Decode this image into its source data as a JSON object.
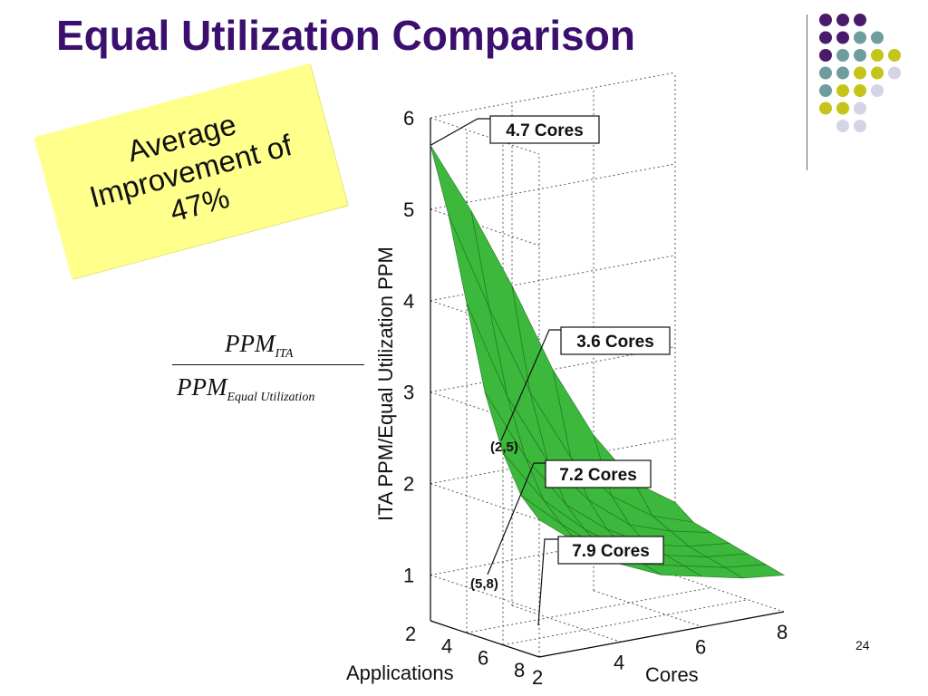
{
  "slide": {
    "title": "Equal Utilization Comparison",
    "callout": "Average\nImprovement of\n47%",
    "formula": {
      "numerator": "PPM",
      "numerator_sub": "ITA",
      "denominator": "PPM",
      "denominator_sub": "Equal  Utilization"
    },
    "slide_number": "24"
  },
  "colors": {
    "title": "#3b0f6e",
    "callout_bg": "#ffff8c",
    "surface": "#3cb83c",
    "surface_edge": "#1e6e1e",
    "dot_purple": "#4b1b6b",
    "dot_teal": "#6f9c9c",
    "dot_yellow": "#c4c41a",
    "dot_lavender": "#d4d4e6"
  },
  "decor_dots": [
    [
      "purple",
      "purple",
      "purple",
      null,
      null
    ],
    [
      "purple",
      "purple",
      "teal",
      "teal",
      null
    ],
    [
      "purple",
      "teal",
      "teal",
      "yellow",
      "yellow"
    ],
    [
      "teal",
      "teal",
      "yellow",
      "yellow",
      "lavender"
    ],
    [
      "teal",
      "yellow",
      "yellow",
      "lavender",
      null
    ],
    [
      "yellow",
      "yellow",
      "lavender",
      null,
      null
    ],
    [
      null,
      "lavender",
      "lavender",
      null,
      null
    ]
  ],
  "chart_data": {
    "type": "surface3d",
    "zlabel": "ITA PPM/Equal Utilization PPM",
    "xlabel": "Cores",
    "ylabel": "Applications",
    "zlim": [
      0.5,
      6
    ],
    "z_ticks": [
      "1",
      "2",
      "3",
      "4",
      "5",
      "6"
    ],
    "x_ticks": [
      "2",
      "4",
      "6",
      "8"
    ],
    "y_ticks": [
      "2",
      "4",
      "6",
      "8"
    ],
    "cores": [
      2,
      3,
      4,
      5,
      6,
      7,
      8
    ],
    "applications": [
      2,
      3,
      4,
      5,
      6,
      7,
      8
    ],
    "z": [
      [
        5.7,
        4.9,
        4.0,
        3.0,
        2.2,
        1.6,
        1.3
      ],
      [
        5.0,
        3.9,
        2.9,
        2.1,
        1.6,
        1.3,
        1.15
      ],
      [
        4.1,
        3.0,
        2.2,
        1.7,
        1.35,
        1.2,
        1.1
      ],
      [
        3.2,
        2.4,
        1.8,
        1.45,
        1.2,
        1.1,
        1.05
      ],
      [
        2.6,
        2.0,
        1.6,
        1.3,
        1.15,
        1.05,
        1.0
      ],
      [
        2.2,
        1.8,
        1.45,
        1.2,
        1.1,
        1.0,
        0.95
      ],
      [
        2.0,
        1.65,
        1.35,
        1.15,
        1.05,
        0.95,
        0.9
      ]
    ],
    "annotations": [
      {
        "label": "4.7 Cores",
        "point": null
      },
      {
        "label": "3.6 Cores",
        "point": "(2,5)"
      },
      {
        "label": "7.2 Cores",
        "point": "(5,8)"
      },
      {
        "label": "7.9 Cores",
        "point": null
      }
    ]
  }
}
